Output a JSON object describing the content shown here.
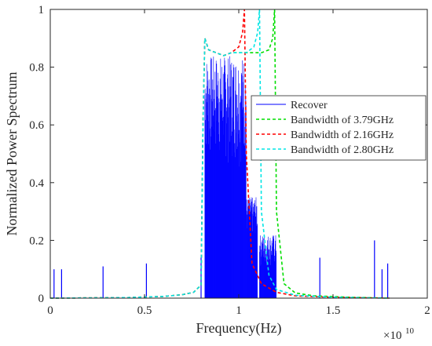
{
  "chart_data": {
    "type": "line",
    "xlabel": "Frequency(Hz)",
    "ylabel": "Normalized Power Spectrum",
    "x_multiplier_label": "×10",
    "x_exponent": "10",
    "xlim": [
      0,
      2
    ],
    "ylim": [
      0,
      1
    ],
    "x_ticks": [
      0,
      0.5,
      1,
      1.5,
      2
    ],
    "x_tick_labels": [
      "0",
      "0.5",
      "1",
      "1.5",
      "2"
    ],
    "y_ticks": [
      0,
      0.2,
      0.4,
      0.6,
      0.8,
      1
    ],
    "y_tick_labels": [
      "0",
      "0.2",
      "0.4",
      "0.6",
      "0.8",
      "1"
    ],
    "grid": false,
    "legend_position": "right",
    "series": [
      {
        "name": "Recover",
        "color": "#0000ff",
        "style": "solid",
        "spikes": [
          {
            "x": 0.02,
            "y": 0.1
          },
          {
            "x": 0.06,
            "y": 0.1
          },
          {
            "x": 0.28,
            "y": 0.11
          },
          {
            "x": 0.51,
            "y": 0.12
          },
          {
            "x": 0.8,
            "y": 0.14
          },
          {
            "x": 1.43,
            "y": 0.14
          },
          {
            "x": 1.72,
            "y": 0.2
          },
          {
            "x": 1.76,
            "y": 0.1
          },
          {
            "x": 1.79,
            "y": 0.12
          }
        ],
        "bands": [
          {
            "x_start": 0.82,
            "x_end": 1.04,
            "peak": 0.84,
            "floor": 0.45
          },
          {
            "x_start": 1.04,
            "x_end": 1.1,
            "peak": 0.35,
            "floor": 0.2
          },
          {
            "x_start": 1.11,
            "x_end": 1.2,
            "peak": 0.22,
            "floor": 0.1
          }
        ]
      },
      {
        "name": "Bandwidth of 3.79GHz",
        "color": "#00dd00",
        "style": "dashed",
        "x": [
          0.0,
          0.4,
          0.6,
          0.7,
          0.76,
          0.8,
          0.81,
          0.82,
          0.84,
          0.88,
          0.92,
          0.96,
          1.0,
          1.04,
          1.08,
          1.12,
          1.16,
          1.18,
          1.19,
          1.2,
          1.24,
          1.3,
          1.4,
          1.6,
          1.8
        ],
        "y": [
          0.0,
          0.002,
          0.006,
          0.012,
          0.02,
          0.045,
          0.6,
          0.9,
          0.86,
          0.85,
          0.84,
          0.85,
          0.85,
          0.85,
          0.85,
          0.85,
          0.86,
          0.9,
          1.0,
          0.3,
          0.05,
          0.018,
          0.008,
          0.003,
          0.0
        ]
      },
      {
        "name": "Bandwidth of 2.16GHz",
        "color": "#ff0000",
        "style": "dashed",
        "x": [
          0.0,
          0.4,
          0.6,
          0.7,
          0.76,
          0.8,
          0.81,
          0.82,
          0.84,
          0.88,
          0.92,
          0.96,
          1.0,
          1.02,
          1.03,
          1.04,
          1.07,
          1.12,
          1.2,
          1.3,
          1.5,
          1.8
        ],
        "y": [
          0.0,
          0.002,
          0.006,
          0.012,
          0.02,
          0.045,
          0.6,
          0.9,
          0.86,
          0.85,
          0.84,
          0.85,
          0.87,
          0.92,
          1.0,
          0.5,
          0.12,
          0.05,
          0.02,
          0.008,
          0.003,
          0.0
        ]
      },
      {
        "name": "Bandwidth of 2.80GHz",
        "color": "#00e5e5",
        "style": "dashed",
        "x": [
          0.0,
          0.4,
          0.6,
          0.7,
          0.76,
          0.8,
          0.81,
          0.82,
          0.84,
          0.88,
          0.92,
          0.96,
          1.0,
          1.04,
          1.08,
          1.1,
          1.11,
          1.12,
          1.16,
          1.2,
          1.3,
          1.5,
          1.8
        ],
        "y": [
          0.0,
          0.002,
          0.006,
          0.012,
          0.02,
          0.045,
          0.6,
          0.9,
          0.86,
          0.85,
          0.84,
          0.85,
          0.85,
          0.85,
          0.87,
          0.92,
          1.0,
          0.3,
          0.08,
          0.03,
          0.01,
          0.003,
          0.0
        ]
      }
    ]
  }
}
